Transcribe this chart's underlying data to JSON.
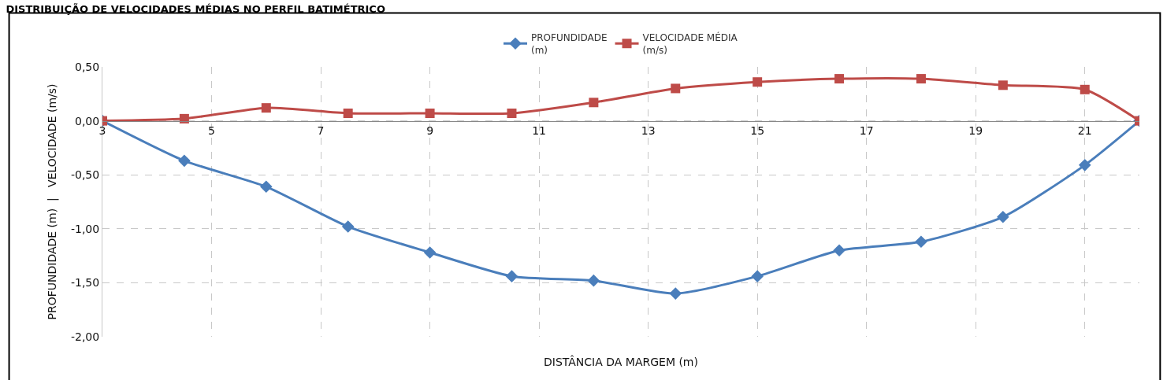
{
  "chart_data": {
    "type": "line",
    "title": "DISTRIBUIÇÃO DE VELOCIDADES MÉDIAS NO PERFIL BATIMÉTRICO",
    "xlabel": "DISTÂNCIA DA MARGEM (m)",
    "ylabel": "PROFUNDIDADE (m)  |   VELOCIDADE (m/s)",
    "x": [
      3,
      4.5,
      6,
      7.5,
      9,
      10.5,
      12,
      13.5,
      15,
      16.5,
      18,
      19.5,
      21,
      22
    ],
    "series": [
      {
        "name": "PROFUNDIDADE\n(m)",
        "color": "#4a7ebb",
        "marker": "diamond",
        "values": [
          0,
          -0.37,
          -0.61,
          -0.98,
          -1.22,
          -1.44,
          -1.48,
          -1.6,
          -1.44,
          -1.2,
          -1.12,
          -0.89,
          -0.41,
          0
        ]
      },
      {
        "name": "VELOCIDADE MÉDIA\n(m/s)",
        "color": "#be4b48",
        "marker": "square",
        "values": [
          0,
          0.02,
          0.12,
          0.07,
          0.07,
          0.07,
          0.17,
          0.3,
          0.36,
          0.39,
          0.39,
          0.33,
          0.29,
          0
        ]
      }
    ],
    "xlim": [
      3,
      22
    ],
    "xticks": [
      3,
      5,
      7,
      9,
      11,
      13,
      15,
      17,
      19,
      21
    ],
    "ylim": [
      -2,
      0.5
    ],
    "yticks": [
      {
        "value": -2,
        "label": "-2,00"
      },
      {
        "value": -1.5,
        "label": "-1,50"
      },
      {
        "value": -1,
        "label": "-1,00"
      },
      {
        "value": -0.5,
        "label": "-0,50"
      },
      {
        "value": 0,
        "label": "0,00"
      },
      {
        "value": 0.5,
        "label": "0,50"
      }
    ],
    "grid": true,
    "legend": "top",
    "line_style": "solid"
  }
}
